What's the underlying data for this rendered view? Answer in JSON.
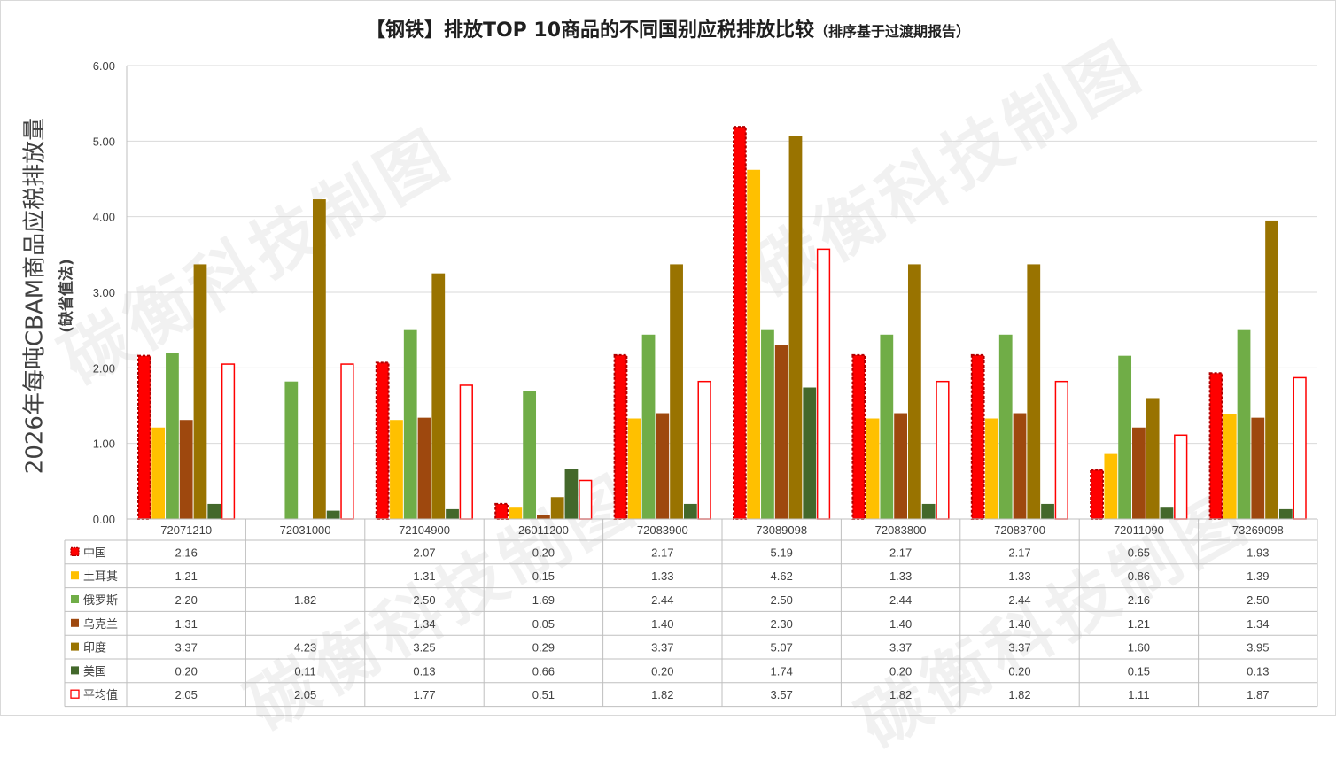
{
  "title": {
    "main": "【钢铁】排放TOP 10商品的不同国别应税排放比较",
    "sub": "（排序基于过渡期报告）"
  },
  "y_axis_label": "2026年每吨CBAM商品应税排放量",
  "y_axis_sublabel": "(缺省值法)",
  "watermark": "碳衡科技制图",
  "chart_data": {
    "type": "bar",
    "title": "【钢铁】排放TOP 10商品的不同国别应税排放比较（排序基于过渡期报告）",
    "ylabel": "2026年每吨CBAM商品应税排放量 (缺省值法)",
    "ylim": [
      0,
      6
    ],
    "yticks": [
      "0.00",
      "1.00",
      "2.00",
      "3.00",
      "4.00",
      "5.00",
      "6.00"
    ],
    "grid": true,
    "legend": "data-table",
    "categories": [
      "72071210",
      "72031000",
      "72104900",
      "26011200",
      "72083900",
      "73089098",
      "72083800",
      "72083700",
      "72011090",
      "73269098"
    ],
    "series": [
      {
        "name": "中国",
        "color": "#ff0000",
        "style": "dashed-outline",
        "values": [
          2.16,
          null,
          2.07,
          0.2,
          2.17,
          5.19,
          2.17,
          2.17,
          0.65,
          1.93
        ]
      },
      {
        "name": "土耳其",
        "color": "#ffc000",
        "values": [
          1.21,
          null,
          1.31,
          0.15,
          1.33,
          4.62,
          1.33,
          1.33,
          0.86,
          1.39
        ]
      },
      {
        "name": "俄罗斯",
        "color": "#70ad47",
        "values": [
          2.2,
          1.82,
          2.5,
          1.69,
          2.44,
          2.5,
          2.44,
          2.44,
          2.16,
          2.5
        ]
      },
      {
        "name": "乌克兰",
        "color": "#9e480e",
        "values": [
          1.31,
          null,
          1.34,
          0.05,
          1.4,
          2.3,
          1.4,
          1.4,
          1.21,
          1.34
        ]
      },
      {
        "name": "印度",
        "color": "#997300",
        "values": [
          3.37,
          4.23,
          3.25,
          0.29,
          3.37,
          5.07,
          3.37,
          3.37,
          1.6,
          3.95
        ]
      },
      {
        "name": "美国",
        "color": "#43682b",
        "values": [
          0.2,
          0.11,
          0.13,
          0.66,
          0.2,
          1.74,
          0.2,
          0.2,
          0.15,
          0.13
        ]
      },
      {
        "name": "平均值",
        "color": "#ff0000",
        "style": "hollow",
        "values": [
          2.05,
          2.05,
          1.77,
          0.51,
          1.82,
          3.57,
          1.82,
          1.82,
          1.11,
          1.87
        ]
      }
    ]
  }
}
